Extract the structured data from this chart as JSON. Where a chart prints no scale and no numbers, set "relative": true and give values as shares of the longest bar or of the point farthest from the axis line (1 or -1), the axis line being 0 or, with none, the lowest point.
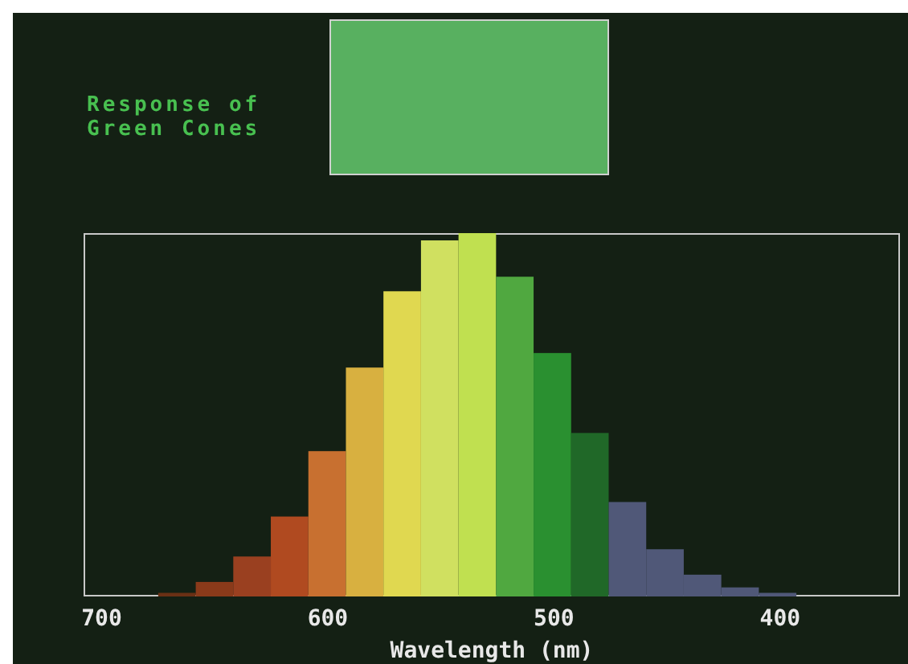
{
  "chart_data": {
    "type": "bar",
    "title": "Response of Green Cones",
    "xlabel": "Wavelength (nm)",
    "x": [
      666.7,
      650.1,
      633.5,
      616.9,
      600.3,
      583.7,
      567.1,
      550.5,
      533.9,
      517.3,
      500.7,
      484.1,
      467.5,
      450.9,
      434.3,
      417.7,
      401.1
    ],
    "values": [
      0.01,
      0.04,
      0.11,
      0.22,
      0.4,
      0.63,
      0.84,
      0.98,
      1,
      0.88,
      0.67,
      0.45,
      0.26,
      0.13,
      0.06,
      0.025,
      0.01
    ],
    "colors": [
      "#6a3015",
      "#8a3a1a",
      "#9a4020",
      "#b04a20",
      "#c87030",
      "#d8b040",
      "#e0d850",
      "#d0e060",
      "#c0e050",
      "#50a840",
      "#2a9030",
      "#206828",
      "#505878",
      "#505878",
      "#505878",
      "#505878",
      "#505878"
    ],
    "relative": true,
    "xlim": [
      708,
      347
    ],
    "xticks": [
      700,
      600,
      500,
      400
    ]
  }
}
